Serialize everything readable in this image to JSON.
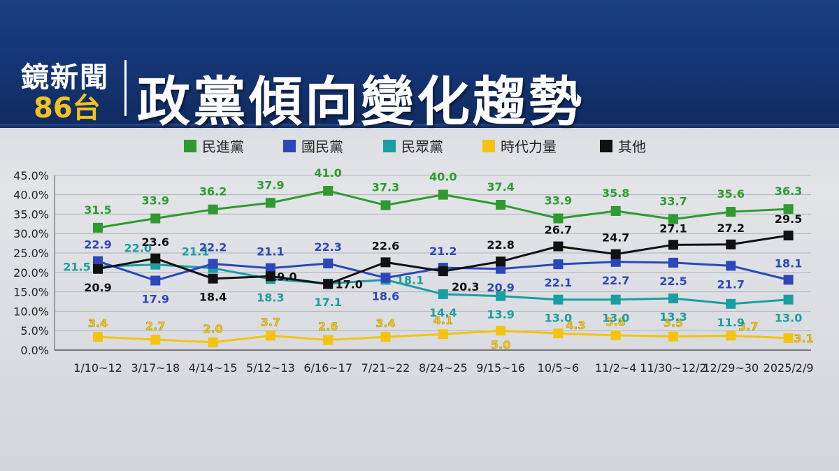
{
  "header": {
    "logo_line1": "鏡新聞",
    "logo_line2_number": "86",
    "logo_line2_suffix": "台",
    "title": "政黨傾向變化趨勢"
  },
  "chart_data": {
    "type": "line",
    "title": "政黨傾向變化趨勢",
    "xlabel": "",
    "ylabel": "",
    "ylim": [
      0,
      45
    ],
    "yticks": [
      "0.0%",
      "5.0%",
      "10.0%",
      "15.0%",
      "20.0%",
      "25.0%",
      "30.0%",
      "35.0%",
      "40.0%",
      "45.0%"
    ],
    "grid": true,
    "legend_position": "top",
    "categories": [
      "1/10~12",
      "3/17~18",
      "4/14~15",
      "5/12~13",
      "6/16~17",
      "7/21~22",
      "8/24~25",
      "9/15~16",
      "10/5~6",
      "11/2~4",
      "11/30~12/2",
      "12/29~30",
      "2025/2/9"
    ],
    "series": [
      {
        "name": "民進黨",
        "color": "#2f9a2f",
        "values": [
          31.5,
          33.9,
          36.2,
          37.9,
          41.0,
          37.3,
          40.0,
          37.4,
          33.9,
          35.8,
          33.7,
          35.6,
          36.3
        ]
      },
      {
        "name": "國民黨",
        "color": "#2d47b8",
        "values": [
          22.9,
          17.9,
          22.2,
          21.1,
          22.3,
          18.6,
          21.2,
          20.9,
          22.1,
          22.7,
          22.5,
          21.7,
          18.1
        ]
      },
      {
        "name": "民眾黨",
        "color": "#1a9ea0",
        "values": [
          21.5,
          22.0,
          21.1,
          18.3,
          17.1,
          18.1,
          14.4,
          13.9,
          13.0,
          13.0,
          13.3,
          11.9,
          13.0
        ]
      },
      {
        "name": "時代力量",
        "color": "#f2c40f",
        "values": [
          3.4,
          2.7,
          2.0,
          3.7,
          2.6,
          3.4,
          4.1,
          5.0,
          4.3,
          3.8,
          3.5,
          3.7,
          3.1
        ]
      },
      {
        "name": "其他",
        "color": "#111111",
        "values": [
          20.9,
          23.6,
          18.4,
          19.0,
          17.0,
          22.6,
          20.3,
          22.8,
          26.7,
          24.7,
          27.1,
          27.2,
          29.5
        ]
      }
    ],
    "labels": [
      [
        "31.5",
        "33.9",
        "36.2",
        "37.9",
        "41.0",
        "37.3",
        "40.0",
        "37.4",
        "33.9",
        "35.8",
        "33.7",
        "35.6",
        "36.3"
      ],
      [
        "22.9",
        "17.9",
        "22.2",
        "21.1",
        "22.3",
        "18.6",
        "21.2",
        "20.9",
        "22.1",
        "22.7",
        "22.5",
        "21.7",
        "18.1"
      ],
      [
        "21.5",
        "22.0",
        "21.1",
        "18.3",
        "17.1",
        "18.1",
        "14.4",
        "13.9",
        "13.0",
        "13.0",
        "13.3",
        "11.9",
        "13.0"
      ],
      [
        "3.4",
        "2.7",
        "2.0",
        "3.7",
        "2.6",
        "3.4",
        "4.1",
        "5.0",
        "4.3",
        "3.8",
        "3.5",
        "3.7",
        "3.1"
      ],
      [
        "20.9",
        "23.6",
        "18.4",
        "19.0",
        "17.0",
        "22.6",
        "20.3",
        "22.8",
        "26.7",
        "24.7",
        "27.1",
        "27.2",
        "29.5"
      ]
    ]
  }
}
